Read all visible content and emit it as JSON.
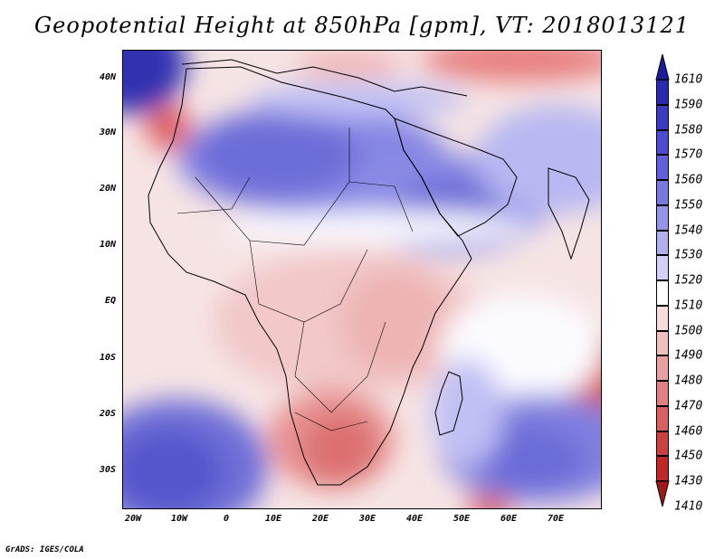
{
  "title": "Geopotential Height at 850hPa [gpm], VT: 2018013121",
  "credit": "GrADS: IGES/COLA",
  "map": {
    "region": "Africa and Middle East",
    "lat_labels": [
      "40N",
      "30N",
      "20N",
      "10N",
      "EQ",
      "10S",
      "20S",
      "30S"
    ],
    "lon_labels": [
      "20W",
      "10W",
      "0",
      "10E",
      "20E",
      "30E",
      "40E",
      "50E",
      "60E",
      "70E"
    ]
  },
  "colorbar": {
    "levels": [
      "1610",
      "1590",
      "1580",
      "1570",
      "1560",
      "1550",
      "1540",
      "1530",
      "1520",
      "1510",
      "1500",
      "1490",
      "1480",
      "1470",
      "1460",
      "1450",
      "1430",
      "1410"
    ],
    "colors": [
      "#1c1c9a",
      "#2a2ab0",
      "#3b3bc2",
      "#4c4cd0",
      "#6060d8",
      "#7878e0",
      "#9494e8",
      "#b0b0f0",
      "#d0d0f8",
      "#ffffff",
      "#f8dcdc",
      "#f0c0c0",
      "#e8a0a0",
      "#e08080",
      "#d86060",
      "#cc4040",
      "#c02828",
      "#a01818"
    ]
  }
}
